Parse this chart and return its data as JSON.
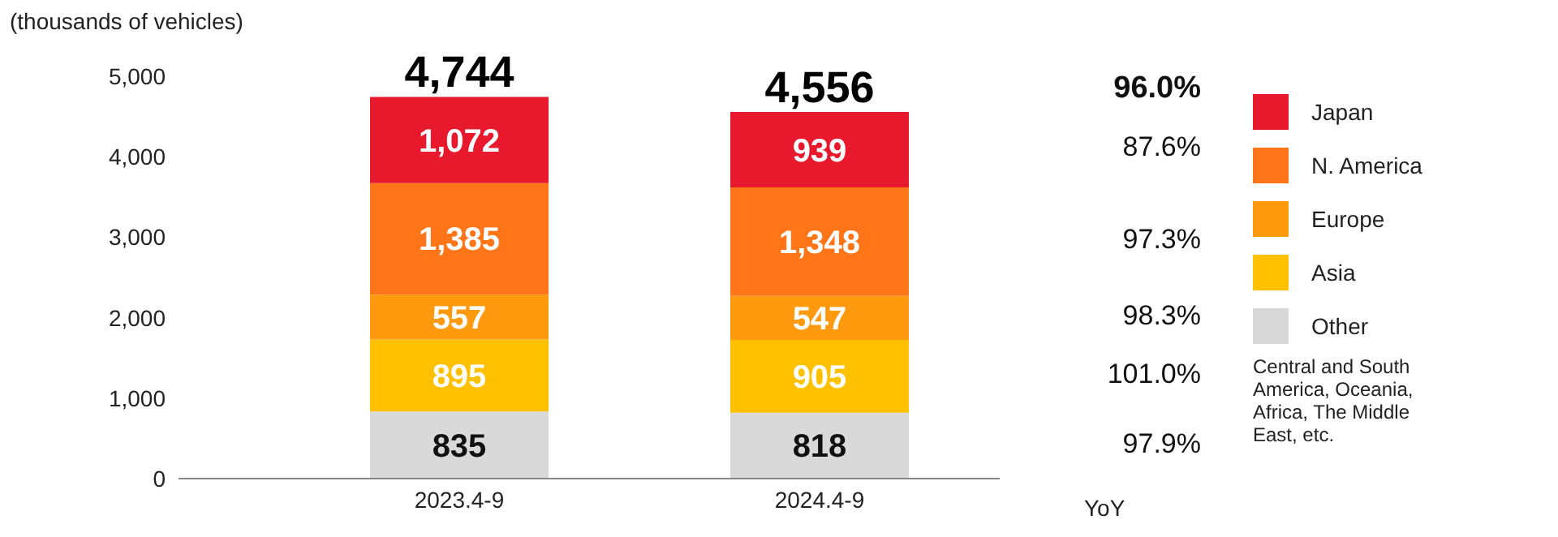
{
  "chart_data": {
    "type": "bar",
    "stacked": true,
    "ylabel": "(thousands of vehicles)",
    "categories": [
      "2023.4-9",
      "2024.4-9"
    ],
    "series": [
      {
        "name": "Other",
        "color": "#d9d9d9",
        "values": [
          835,
          818
        ],
        "value_labels": [
          "835",
          "818"
        ]
      },
      {
        "name": "Asia",
        "color": "#ffc000",
        "values": [
          895,
          905
        ],
        "value_labels": [
          "895",
          "905"
        ]
      },
      {
        "name": "Europe",
        "color": "#ff9a0f",
        "values": [
          557,
          547
        ],
        "value_labels": [
          "557",
          "547"
        ]
      },
      {
        "name": "N. America",
        "color": "#ff7518",
        "values": [
          1385,
          1348
        ],
        "value_labels": [
          "1,385",
          "1,348"
        ]
      },
      {
        "name": "Japan",
        "color": "#e8192c",
        "values": [
          1072,
          939
        ],
        "value_labels": [
          "1,072",
          "939"
        ]
      }
    ],
    "totals": [
      "4,744",
      "4,556"
    ],
    "ylim": [
      0,
      5000
    ],
    "yticks": [
      0,
      {
        "value": 1000,
        "label": "1,000"
      },
      {
        "value": 2000,
        "label": "2,000"
      },
      {
        "value": 3000,
        "label": "3,000"
      },
      {
        "value": 4000,
        "label": "4,000"
      },
      {
        "value": 5000,
        "label": "5,000"
      }
    ],
    "grid": false,
    "legend": "right",
    "annotations": [
      "96.0%",
      "87.6%",
      "97.3%",
      "98.3%",
      "101.0%",
      "97.9%",
      "YoY",
      "Central and South America, Oceania, Africa, The Middle East, etc."
    ]
  }
}
